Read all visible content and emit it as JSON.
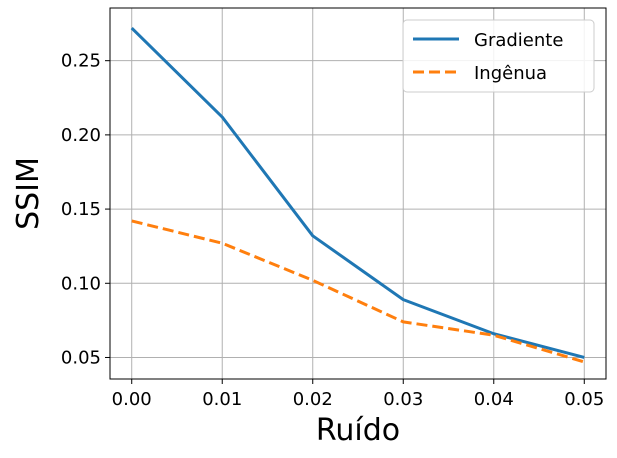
{
  "chart_data": {
    "type": "line",
    "xlabel": "Ruído",
    "ylabel": "SSIM",
    "x": [
      0.0,
      0.01,
      0.02,
      0.03,
      0.04,
      0.05
    ],
    "x_ticks": [
      "0.00",
      "0.01",
      "0.02",
      "0.03",
      "0.04",
      "0.05"
    ],
    "y_ticks": [
      "0.05",
      "0.10",
      "0.15",
      "0.20",
      "0.25"
    ],
    "y_tick_values": [
      0.05,
      0.1,
      0.15,
      0.2,
      0.25
    ],
    "xlim": [
      -0.0024,
      0.0524
    ],
    "ylim": [
      0.0355,
      0.2855
    ],
    "grid": true,
    "legend_position": "top-right",
    "series": [
      {
        "name": "Gradiente",
        "values": [
          0.272,
          0.212,
          0.132,
          0.089,
          0.066,
          0.05
        ],
        "color": "#1f77b4",
        "style": "solid"
      },
      {
        "name": "Ingênua",
        "values": [
          0.142,
          0.127,
          0.102,
          0.074,
          0.065,
          0.047
        ],
        "color": "#ff7f0e",
        "style": "dashed"
      }
    ]
  }
}
